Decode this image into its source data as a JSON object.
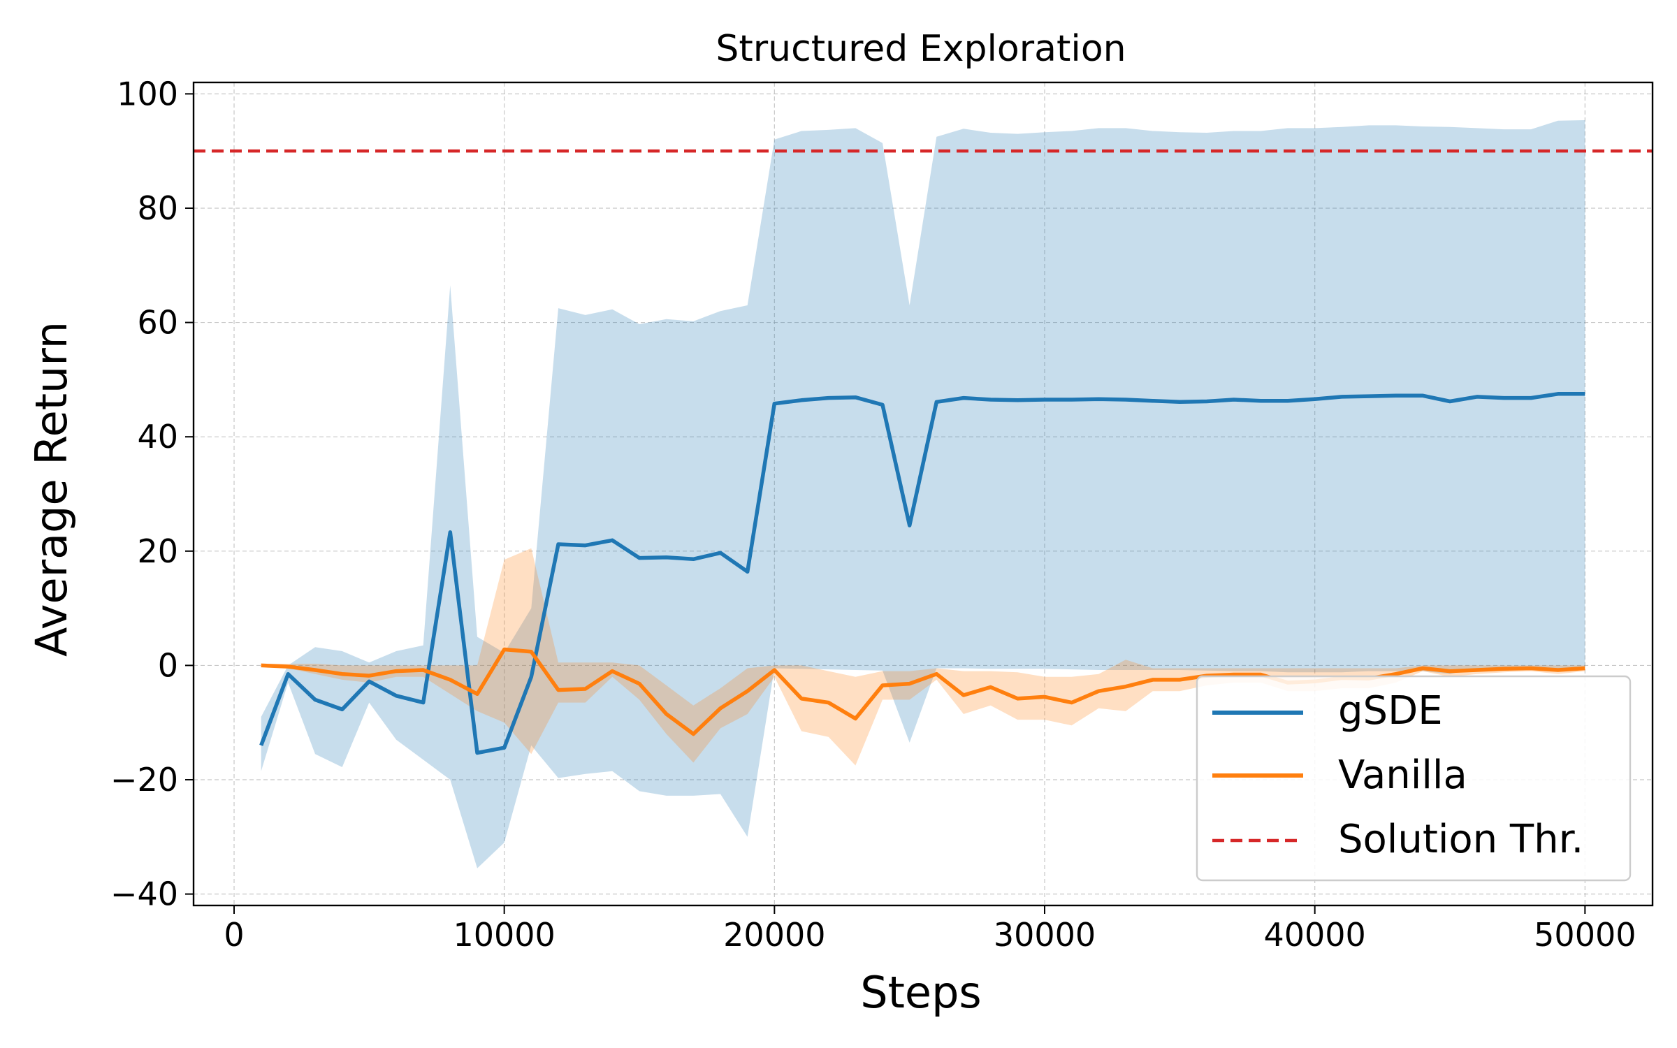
{
  "chart_data": {
    "type": "line",
    "title": "Structured Exploration",
    "xlabel": "Steps",
    "ylabel": "Average Return",
    "xlim": [
      -1500,
      52500
    ],
    "ylim": [
      -42,
      102
    ],
    "xticks": [
      0,
      10000,
      20000,
      30000,
      40000,
      50000
    ],
    "xtick_labels": [
      "0",
      "10000",
      "20000",
      "30000",
      "40000",
      "50000"
    ],
    "yticks": [
      -40,
      -20,
      0,
      20,
      40,
      60,
      80,
      100
    ],
    "ytick_labels": [
      "−40",
      "−20",
      "0",
      "20",
      "40",
      "60",
      "80",
      "100"
    ],
    "grid": true,
    "legend_position": "lower-right",
    "x": [
      1000,
      2000,
      3000,
      4000,
      5000,
      6000,
      7000,
      8000,
      9000,
      10000,
      11000,
      12000,
      13000,
      14000,
      15000,
      16000,
      17000,
      18000,
      19000,
      20000,
      21000,
      22000,
      23000,
      24000,
      25000,
      26000,
      27000,
      28000,
      29000,
      30000,
      31000,
      32000,
      33000,
      34000,
      35000,
      36000,
      37000,
      38000,
      39000,
      40000,
      41000,
      42000,
      43000,
      44000,
      45000,
      46000,
      47000,
      48000,
      49000,
      50000
    ],
    "series": [
      {
        "name": "gSDE",
        "color": "#1f77b4",
        "values": [
          -14,
          -1.5,
          -6,
          -7.7,
          -2.8,
          -5.3,
          -6.5,
          23.3,
          -15.3,
          -14.4,
          -2,
          21.2,
          21,
          21.9,
          18.8,
          18.9,
          18.6,
          19.7,
          16.4,
          45.8,
          46.4,
          46.8,
          46.9,
          45.6,
          24.5,
          46.1,
          46.8,
          46.5,
          46.4,
          46.5,
          46.5,
          46.6,
          46.5,
          46.3,
          46.1,
          46.2,
          46.5,
          46.3,
          46.3,
          46.6,
          47,
          47.1,
          47.2,
          47.2,
          46.2,
          47,
          46.8,
          46.8,
          47.5,
          47.5
        ],
        "upper": [
          -9,
          0,
          3.2,
          2.5,
          0.5,
          2.5,
          3.5,
          66.5,
          5,
          2.2,
          10,
          62.5,
          61.3,
          62.3,
          59.7,
          60.6,
          60.2,
          62,
          63,
          92,
          93.5,
          93.7,
          94,
          91.4,
          63,
          92.5,
          93.9,
          93.2,
          93,
          93.3,
          93.5,
          94,
          94,
          93.5,
          93.3,
          93.2,
          93.5,
          93.5,
          94,
          94,
          94.2,
          94.5,
          94.5,
          94.3,
          94.2,
          94,
          93.8,
          93.8,
          95.3,
          95.4
        ],
        "lower": [
          -18.5,
          -3,
          -15.5,
          -17.8,
          -6.5,
          -13,
          -16.5,
          -20,
          -35.5,
          -31,
          -14,
          -19.7,
          -19,
          -18.5,
          -22,
          -22.8,
          -22.8,
          -22.5,
          -30,
          -0.5,
          -0.6,
          -0.7,
          -0.8,
          -0.9,
          -13.5,
          -0.5,
          -0.5,
          -0.6,
          -0.6,
          -0.6,
          -0.7,
          -0.8,
          -0.8,
          -0.8,
          -0.8,
          -0.9,
          -1,
          -1,
          -1.2,
          -1.2,
          -1.2,
          -1,
          -1,
          -1,
          -1.5,
          -0.5,
          -0.5,
          -0.5,
          -0.5,
          -0.5
        ]
      },
      {
        "name": "Vanilla",
        "color": "#ff7f0e",
        "values": [
          0,
          -0.2,
          -0.8,
          -1.5,
          -1.8,
          -1,
          -0.8,
          -2.5,
          -5,
          2.8,
          2.4,
          -4.3,
          -4.1,
          -1,
          -3.2,
          -8.5,
          -12,
          -7.5,
          -4.5,
          -0.8,
          -5.8,
          -6.5,
          -9.3,
          -3.5,
          -3.2,
          -1.5,
          -5.2,
          -3.8,
          -5.8,
          -5.5,
          -6.5,
          -4.5,
          -3.7,
          -2.5,
          -2.5,
          -1.8,
          -1.6,
          -1.6,
          -3,
          -2.8,
          -2.2,
          -2.3,
          -1.5,
          -0.5,
          -1,
          -0.8,
          -0.6,
          -0.5,
          -0.8,
          -0.5
        ],
        "upper": [
          0.3,
          0.3,
          0.3,
          0,
          0,
          0,
          0,
          0,
          0,
          18.5,
          20.5,
          0.5,
          0.5,
          0.5,
          0,
          -3.5,
          -7,
          -4,
          -0.5,
          0,
          0,
          -1,
          -2,
          -1,
          -1,
          -0.5,
          -1,
          -1,
          -1.2,
          -2,
          -2,
          -1.5,
          1,
          -0.5,
          -0.5,
          -0.5,
          -0.5,
          -0.5,
          -0.5,
          -0.5,
          -0.5,
          -0.5,
          -0.5,
          0,
          0,
          0,
          0,
          0,
          0,
          0
        ],
        "lower": [
          -0.3,
          -0.5,
          -1.5,
          -2.5,
          -3,
          -2,
          -2,
          -5,
          -8,
          -10,
          -15.5,
          -6.5,
          -6.5,
          -2,
          -6,
          -12,
          -17,
          -11,
          -8.5,
          -2,
          -11.5,
          -12.5,
          -17.5,
          -6,
          -6,
          -2.5,
          -8.5,
          -7,
          -9.5,
          -9.5,
          -10.5,
          -7.5,
          -8,
          -4.5,
          -4.5,
          -3.5,
          -3,
          -3,
          -4.5,
          -4.5,
          -4,
          -4,
          -3,
          -1,
          -2,
          -1.5,
          -1.2,
          -1,
          -1.5,
          -1
        ]
      }
    ],
    "threshold": {
      "name": "Solution Thr.",
      "value": 90,
      "color": "#d62728",
      "style": "dashed"
    }
  }
}
